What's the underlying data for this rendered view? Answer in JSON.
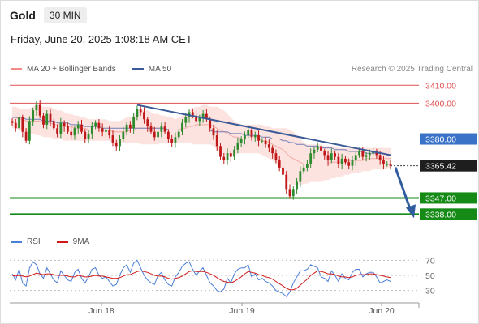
{
  "header": {
    "symbol": "Gold",
    "timeframe": "30 MIN"
  },
  "datetime": "Friday, June 20, 2025 1:08:18 AM CET",
  "credit": "Research © 2025 Trading Central",
  "legend": {
    "bb_label": "MA 20 + Bollinger Bands",
    "ma50_label": "MA 50",
    "rsi_label": "RSI",
    "rsi_ma_label": "9MA"
  },
  "colors": {
    "bb": "#f08c84",
    "ma50": "#3a5a98",
    "red_level": "#e05050",
    "blue_level": "#3a72c8",
    "green_level": "#168a16",
    "rsi": "#4a7fd8",
    "rsi_ma": "#d01818",
    "up": "#2e8b2e",
    "down": "#c01818"
  },
  "chart_data": [
    {
      "type": "candlestick",
      "ylim": [
        3330,
        3416
      ],
      "x_ticks": [
        "Jun 18",
        "Jun 19",
        "Jun 20"
      ],
      "current_price": "3365.42",
      "levels": [
        {
          "value": 3410,
          "label": "3410.00",
          "kind": "resistance-red"
        },
        {
          "value": 3400,
          "label": "3400.00",
          "kind": "resistance-red"
        },
        {
          "value": 3380,
          "label": "3380.00",
          "kind": "pivot-blue"
        },
        {
          "value": 3347,
          "label": "3347.00",
          "kind": "support-green"
        },
        {
          "value": 3338,
          "label": "3338.00",
          "kind": "support-green"
        }
      ],
      "trendline": {
        "from": 3399,
        "to": 3371
      },
      "arrow": {
        "from": 3365,
        "to": 3338
      },
      "closes": [
        3389,
        3386,
        3392,
        3384,
        3379,
        3390,
        3396,
        3399,
        3393,
        3388,
        3394,
        3390,
        3386,
        3383,
        3389,
        3387,
        3384,
        3382,
        3386,
        3388,
        3384,
        3380,
        3383,
        3387,
        3389,
        3386,
        3384,
        3385,
        3382,
        3378,
        3376,
        3380,
        3384,
        3388,
        3386,
        3392,
        3397,
        3395,
        3391,
        3387,
        3384,
        3381,
        3384,
        3387,
        3384,
        3380,
        3378,
        3381,
        3384,
        3389,
        3392,
        3395,
        3393,
        3390,
        3392,
        3394,
        3391,
        3386,
        3382,
        3376,
        3370,
        3368,
        3372,
        3370,
        3374,
        3378,
        3380,
        3382,
        3385,
        3381,
        3382,
        3379,
        3379,
        3377,
        3375,
        3372,
        3368,
        3364,
        3360,
        3352,
        3348,
        3352,
        3356,
        3362,
        3364,
        3366,
        3372,
        3374,
        3376,
        3373,
        3371,
        3368,
        3372,
        3370,
        3366,
        3369,
        3367,
        3365,
        3368,
        3371,
        3373,
        3370,
        3371,
        3372,
        3373,
        3371,
        3368,
        3366,
        3366,
        3365
      ],
      "ma20": [
        3392,
        3392,
        3391,
        3391,
        3390,
        3390,
        3390,
        3390,
        3390,
        3389,
        3389,
        3389,
        3388,
        3388,
        3388,
        3387,
        3387,
        3387,
        3386,
        3386,
        3386,
        3386,
        3385,
        3385,
        3385,
        3385,
        3385,
        3385,
        3385,
        3384,
        3384,
        3384,
        3384,
        3384,
        3385,
        3385,
        3386,
        3386,
        3386,
        3386,
        3386,
        3386,
        3386,
        3386,
        3386,
        3385,
        3385,
        3385,
        3385,
        3386,
        3386,
        3387,
        3387,
        3388,
        3388,
        3388,
        3388,
        3388,
        3387,
        3386,
        3385,
        3384,
        3383,
        3382,
        3381,
        3381,
        3380,
        3380,
        3380,
        3380,
        3380,
        3380,
        3379,
        3379,
        3378,
        3377,
        3376,
        3375,
        3374,
        3372,
        3370,
        3369,
        3368,
        3367,
        3366,
        3366,
        3366,
        3366,
        3366,
        3366,
        3366,
        3366,
        3367,
        3367,
        3367,
        3367,
        3367,
        3368,
        3368,
        3368,
        3368,
        3368,
        3369,
        3369,
        3369,
        3369,
        3369,
        3369,
        3369,
        3369
      ],
      "bb_upper": [
        3398,
        3398,
        3397,
        3397,
        3397,
        3397,
        3398,
        3399,
        3399,
        3398,
        3398,
        3398,
        3397,
        3396,
        3396,
        3395,
        3394,
        3394,
        3393,
        3393,
        3392,
        3392,
        3391,
        3391,
        3391,
        3391,
        3391,
        3391,
        3390,
        3390,
        3390,
        3390,
        3391,
        3392,
        3392,
        3393,
        3395,
        3396,
        3396,
        3396,
        3395,
        3394,
        3394,
        3393,
        3393,
        3392,
        3392,
        3391,
        3392,
        3393,
        3394,
        3396,
        3397,
        3398,
        3398,
        3399,
        3399,
        3398,
        3398,
        3398,
        3397,
        3396,
        3394,
        3392,
        3390,
        3389,
        3388,
        3388,
        3388,
        3388,
        3388,
        3388,
        3388,
        3387,
        3387,
        3386,
        3386,
        3386,
        3386,
        3386,
        3385,
        3384,
        3382,
        3380,
        3378,
        3377,
        3377,
        3377,
        3377,
        3377,
        3376,
        3376,
        3376,
        3376,
        3375,
        3375,
        3375,
        3375,
        3375,
        3375,
        3375,
        3375,
        3375,
        3375,
        3375,
        3375,
        3375,
        3375,
        3375,
        3375
      ],
      "bb_lower": [
        3386,
        3386,
        3385,
        3385,
        3384,
        3383,
        3383,
        3382,
        3382,
        3381,
        3381,
        3381,
        3380,
        3380,
        3380,
        3379,
        3379,
        3379,
        3379,
        3379,
        3379,
        3379,
        3379,
        3379,
        3379,
        3379,
        3379,
        3379,
        3379,
        3378,
        3378,
        3378,
        3378,
        3378,
        3378,
        3378,
        3378,
        3377,
        3377,
        3377,
        3377,
        3377,
        3377,
        3378,
        3378,
        3378,
        3378,
        3378,
        3378,
        3378,
        3378,
        3378,
        3377,
        3377,
        3377,
        3377,
        3377,
        3377,
        3376,
        3374,
        3372,
        3371,
        3371,
        3371,
        3371,
        3372,
        3372,
        3372,
        3372,
        3372,
        3372,
        3372,
        3371,
        3370,
        3369,
        3368,
        3366,
        3364,
        3362,
        3358,
        3355,
        3354,
        3354,
        3354,
        3355,
        3355,
        3356,
        3356,
        3356,
        3356,
        3357,
        3357,
        3358,
        3358,
        3359,
        3359,
        3360,
        3360,
        3361,
        3361,
        3361,
        3362,
        3362,
        3362,
        3363,
        3363,
        3363,
        3363,
        3363,
        3364
      ],
      "ma50": [
        3392,
        3392,
        3392,
        3392,
        3391,
        3391,
        3391,
        3391,
        3391,
        3390,
        3390,
        3390,
        3390,
        3389,
        3389,
        3389,
        3389,
        3388,
        3388,
        3388,
        3388,
        3387,
        3387,
        3387,
        3387,
        3387,
        3386,
        3386,
        3386,
        3386,
        3386,
        3386,
        3386,
        3386,
        3386,
        3386,
        3386,
        3386,
        3386,
        3386,
        3386,
        3386,
        3386,
        3386,
        3386,
        3385,
        3385,
        3385,
        3385,
        3385,
        3385,
        3385,
        3385,
        3385,
        3385,
        3385,
        3385,
        3385,
        3384,
        3384,
        3384,
        3384,
        3384,
        3383,
        3383,
        3383,
        3383,
        3382,
        3382,
        3382,
        3382,
        3382,
        3381,
        3381,
        3381,
        3380,
        3380,
        3380,
        3379,
        3379,
        3378,
        3378,
        3377,
        3377,
        3377,
        3376,
        3376,
        3376,
        3376,
        3375,
        3375,
        3375,
        3375,
        3374,
        3374,
        3374,
        3374,
        3373,
        3373,
        3373,
        3373,
        3373,
        3372,
        3372,
        3372,
        3372,
        3372,
        3372,
        3371,
        3371
      ]
    },
    {
      "type": "line",
      "ylim": [
        20,
        80
      ],
      "y_ticks": [
        "70",
        "50",
        "30"
      ],
      "rsi": [
        52,
        44,
        58,
        40,
        36,
        60,
        68,
        64,
        52,
        46,
        60,
        52,
        44,
        40,
        56,
        50,
        44,
        42,
        54,
        58,
        46,
        40,
        48,
        58,
        60,
        50,
        46,
        48,
        42,
        36,
        38,
        50,
        60,
        64,
        54,
        66,
        70,
        60,
        50,
        44,
        40,
        38,
        50,
        54,
        44,
        38,
        36,
        48,
        54,
        62,
        66,
        68,
        58,
        50,
        56,
        60,
        50,
        40,
        36,
        30,
        28,
        32,
        46,
        40,
        52,
        58,
        60,
        60,
        64,
        48,
        52,
        44,
        46,
        42,
        40,
        36,
        30,
        28,
        26,
        22,
        28,
        40,
        48,
        56,
        56,
        58,
        64,
        62,
        60,
        48,
        46,
        42,
        56,
        50,
        42,
        52,
        46,
        44,
        54,
        58,
        58,
        48,
        52,
        54,
        54,
        48,
        40,
        42,
        44,
        42
      ],
      "ma9": [
        50,
        49,
        50,
        49,
        48,
        49,
        51,
        53,
        52,
        51,
        52,
        52,
        51,
        50,
        50,
        50,
        49,
        48,
        48,
        50,
        49,
        48,
        48,
        49,
        50,
        49,
        49,
        48,
        47,
        46,
        46,
        47,
        49,
        51,
        51,
        53,
        55,
        56,
        55,
        54,
        52,
        50,
        49,
        49,
        48,
        46,
        45,
        46,
        47,
        49,
        52,
        55,
        56,
        55,
        55,
        55,
        54,
        52,
        50,
        47,
        44,
        42,
        41,
        40,
        42,
        45,
        48,
        52,
        55,
        54,
        53,
        51,
        50,
        48,
        47,
        45,
        42,
        39,
        36,
        33,
        31,
        31,
        33,
        37,
        41,
        45,
        50,
        53,
        56,
        55,
        54,
        52,
        52,
        51,
        49,
        48,
        48,
        47,
        48,
        50,
        51,
        51,
        51,
        52,
        52,
        51,
        50,
        49,
        48,
        47
      ]
    }
  ]
}
